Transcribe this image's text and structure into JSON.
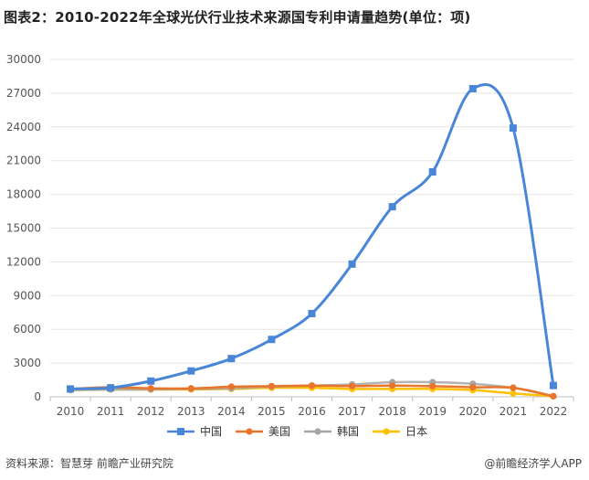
{
  "title": "图表2：2010-2022年全球光伏行业技术来源国专利申请量趋势(单位：项)",
  "source": "资料来源：智慧芽 前瞻产业研究院",
  "brand": "@前瞻经济学人APP",
  "chart_data": {
    "type": "line",
    "title": "图表2：2010-2022年全球光伏行业技术来源国专利申请量趋势(单位：项)",
    "x": [
      "2010",
      "2011",
      "2012",
      "2013",
      "2014",
      "2015",
      "2016",
      "2017",
      "2018",
      "2019",
      "2020",
      "2021",
      "2022"
    ],
    "ylim": [
      0,
      30000
    ],
    "yticks": [
      0,
      3000,
      6000,
      9000,
      12000,
      15000,
      18000,
      21000,
      24000,
      27000,
      30000
    ],
    "legend_position": "bottom",
    "series": [
      {
        "name": "中国",
        "color": "#4a86d8",
        "marker": "square",
        "values": [
          700,
          800,
          1400,
          2300,
          3400,
          5100,
          7400,
          11800,
          16900,
          20000,
          27400,
          23900,
          1000
        ]
      },
      {
        "name": "美国",
        "color": "#e9752c",
        "marker": "circle",
        "values": [
          700,
          850,
          750,
          750,
          900,
          950,
          1000,
          950,
          1000,
          950,
          850,
          800,
          50
        ]
      },
      {
        "name": "韩国",
        "color": "#a6a6a6",
        "marker": "circle",
        "values": [
          600,
          650,
          650,
          700,
          750,
          900,
          1000,
          1100,
          1300,
          1300,
          1150,
          800,
          50
        ]
      },
      {
        "name": "日本",
        "color": "#ffc000",
        "marker": "circle",
        "values": [
          600,
          650,
          650,
          650,
          700,
          800,
          800,
          700,
          700,
          700,
          600,
          300,
          50
        ]
      }
    ]
  }
}
